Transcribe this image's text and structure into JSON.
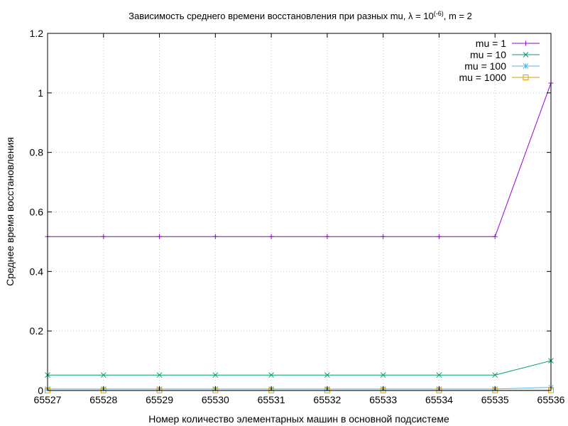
{
  "chart_data": {
    "type": "line",
    "title": "Зависимость среднего времени восстановления при разных mu,  λ = 10",
    "title_superscript": "(-6)",
    "title_suffix": ", m = 2",
    "xlabel": "Номер количество элементарных машин в основной подсистеме",
    "ylabel": "Среднее время восстановления",
    "xlim": [
      65527,
      65536
    ],
    "ylim": [
      0,
      1.2
    ],
    "x_ticks": [
      65527,
      65528,
      65529,
      65530,
      65531,
      65532,
      65533,
      65534,
      65535,
      65536
    ],
    "y_ticks": [
      0,
      0.2,
      0.4,
      0.6,
      0.8,
      1,
      1.2
    ],
    "grid": true,
    "legend_position": "top-right",
    "x": [
      65527,
      65528,
      65529,
      65530,
      65531,
      65532,
      65533,
      65534,
      65535,
      65536
    ],
    "series": [
      {
        "name": "mu = 1",
        "color": "#9400d3",
        "marker": "plus",
        "values": [
          0.517,
          0.517,
          0.517,
          0.517,
          0.517,
          0.517,
          0.517,
          0.517,
          0.517,
          1.033
        ]
      },
      {
        "name": "mu = 10",
        "color": "#009e73",
        "marker": "cross",
        "values": [
          0.052,
          0.052,
          0.052,
          0.052,
          0.052,
          0.052,
          0.052,
          0.052,
          0.052,
          0.1
        ]
      },
      {
        "name": "mu = 100",
        "color": "#56b4e9",
        "marker": "star",
        "values": [
          0.0052,
          0.0052,
          0.0052,
          0.0052,
          0.0052,
          0.0052,
          0.0052,
          0.0052,
          0.0052,
          0.0103
        ]
      },
      {
        "name": "mu = 1000",
        "color": "#e69f00",
        "marker": "square",
        "values": [
          0.0005,
          0.0005,
          0.0005,
          0.0005,
          0.0005,
          0.0005,
          0.0005,
          0.0005,
          0.0005,
          0.001
        ]
      }
    ]
  }
}
